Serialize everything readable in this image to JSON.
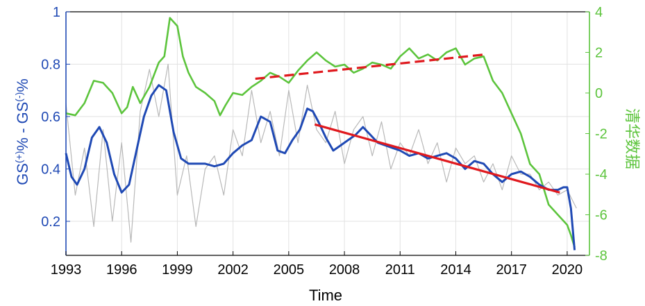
{
  "chart_data": {
    "type": "line",
    "xlabel": "Time",
    "ylabel_left": {
      "base": "GS",
      "sup1": "(+)",
      "mid": "% - GS",
      "sup2": "(-)",
      "end": "%"
    },
    "ylabel_right": "清华数据",
    "xlim": [
      1993,
      2021.2
    ],
    "ylim_left": [
      0.07,
      1.0
    ],
    "ylim_right": [
      -8,
      4
    ],
    "x_ticks": [
      1993,
      1996,
      1999,
      2002,
      2005,
      2008,
      2011,
      2014,
      2017,
      2020
    ],
    "y_ticks_left": [
      0.2,
      0.4,
      0.6,
      0.8,
      1
    ],
    "y_ticks_right": [
      -8,
      -6,
      -4,
      -2,
      0,
      2,
      4
    ],
    "grid": true,
    "colors": {
      "smooth": "#1f49b4",
      "raw": "#b8b8b8",
      "right_series": "#5cc43c",
      "trend": "#e0191e",
      "axis_left": "#1f49b4",
      "axis_right": "#5cc43c"
    },
    "series": [
      {
        "axis": "left",
        "style": "thin gray",
        "x": [
          1993,
          1993.5,
          1994,
          1994.5,
          1995,
          1995.5,
          1996,
          1996.5,
          1997,
          1997.5,
          1998,
          1998.5,
          1999,
          1999.5,
          2000,
          2000.5,
          2001,
          2001.5,
          2002,
          2002.5,
          2003,
          2003.5,
          2004,
          2004.5,
          2005,
          2005.5,
          2006,
          2006.5,
          2007,
          2007.5,
          2008,
          2008.5,
          2009,
          2009.5,
          2010,
          2010.5,
          2011,
          2011.5,
          2012,
          2012.5,
          2013,
          2013.5,
          2014,
          2014.5,
          2015,
          2015.5,
          2016,
          2016.5,
          2017,
          2017.5,
          2018,
          2018.5,
          2019,
          2019.5,
          2020,
          2020.5
        ],
        "y": [
          0.65,
          0.3,
          0.48,
          0.18,
          0.55,
          0.2,
          0.5,
          0.12,
          0.62,
          0.78,
          0.6,
          0.8,
          0.3,
          0.45,
          0.18,
          0.4,
          0.45,
          0.3,
          0.55,
          0.45,
          0.7,
          0.5,
          0.62,
          0.45,
          0.7,
          0.5,
          0.72,
          0.55,
          0.5,
          0.62,
          0.42,
          0.55,
          0.6,
          0.45,
          0.58,
          0.4,
          0.5,
          0.45,
          0.55,
          0.42,
          0.5,
          0.35,
          0.48,
          0.42,
          0.45,
          0.35,
          0.42,
          0.32,
          0.45,
          0.38,
          0.38,
          0.32,
          0.35,
          0.3,
          0.32,
          0.25
        ]
      },
      {
        "axis": "left",
        "style": "thick blue",
        "x": [
          1993,
          1993.3,
          1993.6,
          1994,
          1994.4,
          1994.8,
          1995.2,
          1995.6,
          1996,
          1996.4,
          1996.8,
          1997.2,
          1997.6,
          1998,
          1998.4,
          1998.8,
          1999.2,
          1999.6,
          2000,
          2000.5,
          2001,
          2001.5,
          2002,
          2002.5,
          2003,
          2003.5,
          2004,
          2004.4,
          2004.8,
          2005.2,
          2005.6,
          2006,
          2006.3,
          2006.6,
          2007,
          2007.4,
          2007.8,
          2008.2,
          2008.6,
          2009,
          2009.4,
          2009.8,
          2010.2,
          2010.6,
          2011,
          2011.5,
          2012,
          2012.5,
          2013,
          2013.5,
          2014,
          2014.5,
          2015,
          2015.5,
          2016,
          2016.5,
          2017,
          2017.5,
          2018,
          2018.5,
          2019,
          2019.5,
          2019.8,
          2020,
          2020.2,
          2020.4
        ],
        "y": [
          0.46,
          0.37,
          0.34,
          0.4,
          0.52,
          0.56,
          0.5,
          0.38,
          0.31,
          0.34,
          0.47,
          0.6,
          0.68,
          0.72,
          0.7,
          0.54,
          0.44,
          0.42,
          0.42,
          0.42,
          0.41,
          0.42,
          0.46,
          0.49,
          0.51,
          0.6,
          0.58,
          0.47,
          0.46,
          0.51,
          0.55,
          0.63,
          0.62,
          0.58,
          0.52,
          0.47,
          0.49,
          0.51,
          0.53,
          0.56,
          0.53,
          0.5,
          0.49,
          0.48,
          0.47,
          0.45,
          0.46,
          0.44,
          0.45,
          0.46,
          0.44,
          0.4,
          0.43,
          0.42,
          0.38,
          0.35,
          0.38,
          0.39,
          0.37,
          0.34,
          0.32,
          0.32,
          0.33,
          0.33,
          0.25,
          0.09
        ]
      },
      {
        "axis": "right",
        "style": "green",
        "x": [
          1993,
          1993.5,
          1994,
          1994.5,
          1995,
          1995.5,
          1996,
          1996.3,
          1996.6,
          1997,
          1997.5,
          1998,
          1998.3,
          1998.6,
          1999,
          1999.3,
          1999.6,
          2000,
          2000.5,
          2001,
          2001.3,
          2001.6,
          2002,
          2002.5,
          2003,
          2003.5,
          2004,
          2004.5,
          2005,
          2005.5,
          2006,
          2006.5,
          2007,
          2007.5,
          2008,
          2008.5,
          2009,
          2009.5,
          2010,
          2010.5,
          2011,
          2011.5,
          2012,
          2012.5,
          2013,
          2013.5,
          2014,
          2014.5,
          2015,
          2015.5,
          2016,
          2016.5,
          2017,
          2017.5,
          2018,
          2018.5,
          2019,
          2019.5,
          2020,
          2020.2,
          2020.4
        ],
        "y": [
          -1.0,
          -1.1,
          -0.5,
          0.6,
          0.5,
          0.0,
          -1.0,
          -0.7,
          0.3,
          -0.5,
          0.3,
          1.5,
          1.8,
          3.7,
          3.3,
          1.8,
          1.0,
          0.3,
          0.0,
          -0.4,
          -1.1,
          -0.6,
          0.0,
          -0.1,
          0.3,
          0.6,
          1.0,
          0.8,
          0.5,
          1.1,
          1.6,
          2.0,
          1.6,
          1.3,
          1.4,
          1.0,
          1.2,
          1.5,
          1.4,
          1.2,
          1.8,
          2.2,
          1.7,
          1.9,
          1.6,
          2.0,
          2.2,
          1.4,
          1.7,
          1.8,
          0.6,
          0.0,
          -1.0,
          -2.0,
          -3.5,
          -4.0,
          -5.5,
          -6.0,
          -6.5,
          -7.0,
          -7.6
        ]
      }
    ],
    "trend_lines": [
      {
        "axis": "right",
        "style": "dashed",
        "x": [
          2003.2,
          2015.6
        ],
        "y": [
          0.7,
          1.9
        ]
      },
      {
        "axis": "left",
        "style": "solid",
        "x": [
          2006.4,
          2019.6
        ],
        "y": [
          0.57,
          0.31
        ]
      }
    ]
  }
}
